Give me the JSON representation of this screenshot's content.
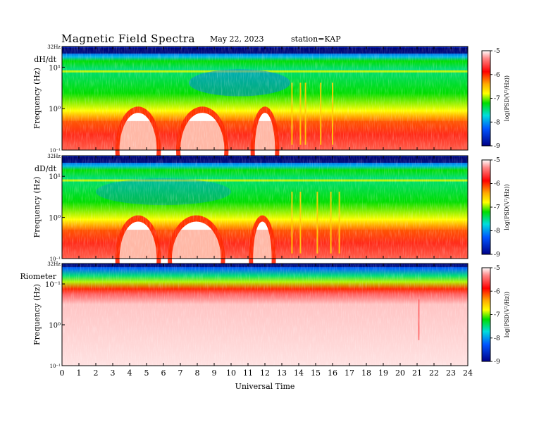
{
  "header": {
    "title": "Magnetic  Field  Spectra",
    "date": "May 22, 2023",
    "station": "station=KAP"
  },
  "chart_data": [
    {
      "type": "heatmap",
      "panel_label": "dH/dt",
      "ylabel": "Frequency  (Hz)",
      "xlabel": "",
      "x_range": [
        0,
        24
      ],
      "y_scale": "log",
      "y_ticks": [
        "32Hz",
        "10¹",
        "10⁰",
        "10⁻¹"
      ],
      "colorbar": {
        "label": "log(PSD(V²/Hz))",
        "ticks": [
          "-5",
          "-6",
          "-7",
          "-8",
          "-9"
        ],
        "range": [
          -9,
          -5
        ]
      },
      "band_depressions_ut": [
        [
          9,
          12,
          0.9
        ]
      ],
      "red_domes_ut": [
        [
          3.4,
          5.6
        ],
        [
          7.0,
          9.6
        ],
        [
          11.4,
          12.6
        ]
      ],
      "spikes_ut": [
        13.6,
        14.1,
        14.4,
        15.3,
        16.0
      ]
    },
    {
      "type": "heatmap",
      "panel_label": "dD/dt",
      "ylabel": "Frequency  (Hz)",
      "xlabel": "",
      "x_range": [
        0,
        24
      ],
      "y_scale": "log",
      "y_ticks": [
        "32Hz",
        "10¹",
        "10⁰",
        "10⁻¹"
      ],
      "colorbar": {
        "label": "log(PSD(V²/Hz))",
        "ticks": [
          "-5",
          "-6",
          "-7",
          "-8",
          "-9"
        ],
        "range": [
          -9,
          -5
        ]
      },
      "band_depressions_ut": [
        [
          4,
          8,
          0.6
        ]
      ],
      "red_domes_ut": [
        [
          3.4,
          5.6
        ],
        [
          6.5,
          9.4
        ],
        [
          11.3,
          12.4
        ]
      ],
      "spikes_ut": [
        13.6,
        14.1,
        15.1,
        15.9,
        16.4
      ]
    },
    {
      "type": "heatmap",
      "panel_label": "Riometer",
      "ylabel": "Frequency  (Hz)",
      "xlabel": "Universal Time",
      "x_range": [
        0,
        24
      ],
      "x_ticks": [
        "0",
        "1",
        "2",
        "3",
        "4",
        "5",
        "6",
        "7",
        "8",
        "9",
        "10",
        "11",
        "12",
        "13",
        "14",
        "15",
        "16",
        "17",
        "18",
        "19",
        "20",
        "21",
        "22",
        "23",
        "24"
      ],
      "y_scale": "log",
      "y_ticks": [
        "32Hz",
        "10⁻¹",
        "10⁰",
        "10⁻¹"
      ],
      "colorbar": {
        "label": "log(PSD(V²/Hz))",
        "ticks": [
          "-5",
          "-6",
          "-7",
          "-8",
          "-9"
        ],
        "range": [
          -9,
          -5
        ]
      },
      "spikes_ut": [
        21.1
      ]
    }
  ]
}
